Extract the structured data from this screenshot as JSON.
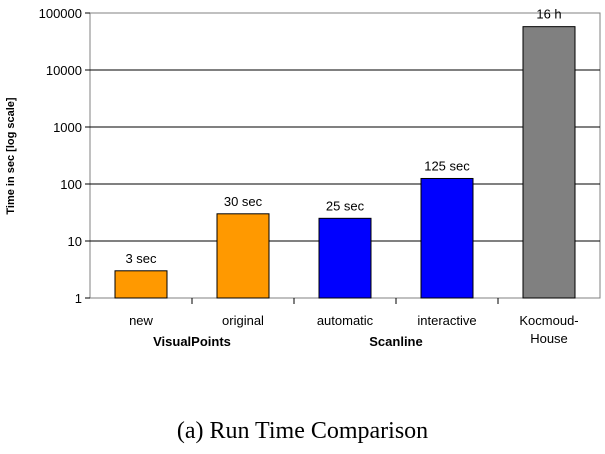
{
  "caption": "(a) Run Time Comparison",
  "chart_data": {
    "type": "bar",
    "ylabel": "Time in sec [log scale]",
    "yscale": "log",
    "ylim": [
      1,
      100000
    ],
    "yticks": [
      {
        "value": 1,
        "label": "1"
      },
      {
        "value": 10,
        "label": "10"
      },
      {
        "value": 100,
        "label": "100"
      },
      {
        "value": 1000,
        "label": "1000"
      },
      {
        "value": 10000,
        "label": "10000"
      },
      {
        "value": 100000,
        "label": "100000"
      }
    ],
    "grid": true,
    "categories": [
      {
        "label": [
          "new"
        ],
        "value": 3,
        "data_label": "3 sec",
        "color": "#ff9900"
      },
      {
        "label": [
          "original"
        ],
        "value": 30,
        "data_label": "30 sec",
        "color": "#ff9900"
      },
      {
        "label": [
          "automatic"
        ],
        "value": 25,
        "data_label": "25 sec",
        "color": "#0000ff"
      },
      {
        "label": [
          "interactive"
        ],
        "value": 125,
        "data_label": "125 sec",
        "color": "#0000ff"
      },
      {
        "label": [
          "Kocmoud-",
          "House"
        ],
        "value": 57600,
        "data_label": "16 h",
        "color": "#808080"
      }
    ],
    "groups": [
      {
        "label": "VisualPoints",
        "categories": [
          0,
          1
        ]
      },
      {
        "label": "Scanline",
        "categories": [
          2,
          3
        ]
      }
    ]
  }
}
